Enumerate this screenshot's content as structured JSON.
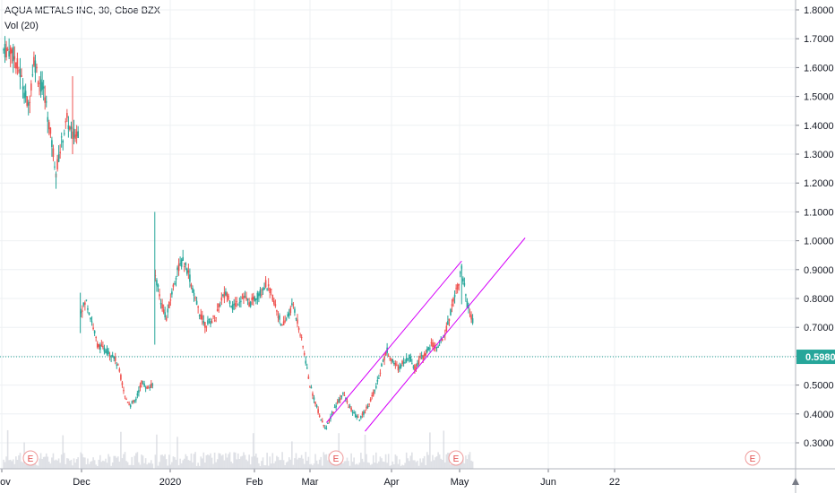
{
  "header": {
    "symbol_line": "AQUA METALS INC, 30, Cboe BZX",
    "indicator": "Vol (20)"
  },
  "chart_data": {
    "type": "candlestick",
    "title": "AQUA METALS INC, 30, Cboe BZX",
    "ylim": [
      0.25,
      1.82
    ],
    "y_ticks": [
      {
        "label": "1.8000",
        "value": 1.8
      },
      {
        "label": "1.7000",
        "value": 1.7
      },
      {
        "label": "1.6000",
        "value": 1.6
      },
      {
        "label": "1.5000",
        "value": 1.5
      },
      {
        "label": "1.4000",
        "value": 1.4
      },
      {
        "label": "1.3000",
        "value": 1.3
      },
      {
        "label": "1.2000",
        "value": 1.2
      },
      {
        "label": "1.1000",
        "value": 1.1
      },
      {
        "label": "1.0000",
        "value": 1.0
      },
      {
        "label": "0.9000",
        "value": 0.9
      },
      {
        "label": "0.8000",
        "value": 0.8
      },
      {
        "label": "0.7000",
        "value": 0.7
      },
      {
        "label": "0.6000",
        "value": 0.6
      },
      {
        "label": "0.5000",
        "value": 0.5
      },
      {
        "label": "0.4000",
        "value": 0.4
      },
      {
        "label": "0.3000",
        "value": 0.3
      }
    ],
    "x_ticks": [
      "Nov",
      "Dec",
      "2020",
      "Feb",
      "Mar",
      "Apr",
      "May",
      "Jun",
      "22"
    ],
    "current_price": {
      "label": "0.5980",
      "value": 0.598,
      "color": "#26a69a"
    },
    "earnings_marker_label": "E",
    "colors": {
      "up": "#26a69a",
      "down": "#ef5350",
      "trendline": "#d500f9",
      "grid": "#eef0f3",
      "volume": "#d1d4dc"
    },
    "price_path": [
      {
        "day": 0,
        "price": 1.66
      },
      {
        "day": 3,
        "price": 1.66
      },
      {
        "day": 6,
        "price": 1.58
      },
      {
        "day": 9,
        "price": 1.46
      },
      {
        "day": 11,
        "price": 1.63
      },
      {
        "day": 13,
        "price": 1.55
      },
      {
        "day": 15,
        "price": 1.5
      },
      {
        "day": 17,
        "price": 1.37
      },
      {
        "day": 19,
        "price": 1.24
      },
      {
        "day": 21,
        "price": 1.34
      },
      {
        "day": 23,
        "price": 1.42
      },
      {
        "day": 25,
        "price": 1.36
      },
      {
        "day": 27,
        "price": 1.38
      },
      {
        "day": 28,
        "price": 0.76
      },
      {
        "day": 30,
        "price": 0.79
      },
      {
        "day": 32,
        "price": 0.72
      },
      {
        "day": 34,
        "price": 0.64
      },
      {
        "day": 37,
        "price": 0.62
      },
      {
        "day": 40,
        "price": 0.6
      },
      {
        "day": 42,
        "price": 0.55
      },
      {
        "day": 44,
        "price": 0.46
      },
      {
        "day": 46,
        "price": 0.43
      },
      {
        "day": 48,
        "price": 0.45
      },
      {
        "day": 50,
        "price": 0.51
      },
      {
        "day": 52,
        "price": 0.49
      },
      {
        "day": 54,
        "price": 0.5
      },
      {
        "day": 55,
        "price": 0.88
      },
      {
        "day": 57,
        "price": 0.79
      },
      {
        "day": 59,
        "price": 0.73
      },
      {
        "day": 61,
        "price": 0.82
      },
      {
        "day": 63,
        "price": 0.9
      },
      {
        "day": 65,
        "price": 0.93
      },
      {
        "day": 67,
        "price": 0.89
      },
      {
        "day": 69,
        "price": 0.81
      },
      {
        "day": 71,
        "price": 0.75
      },
      {
        "day": 73,
        "price": 0.71
      },
      {
        "day": 75,
        "price": 0.72
      },
      {
        "day": 77,
        "price": 0.74
      },
      {
        "day": 79,
        "price": 0.8
      },
      {
        "day": 81,
        "price": 0.82
      },
      {
        "day": 83,
        "price": 0.77
      },
      {
        "day": 85,
        "price": 0.79
      },
      {
        "day": 87,
        "price": 0.81
      },
      {
        "day": 89,
        "price": 0.78
      },
      {
        "day": 91,
        "price": 0.8
      },
      {
        "day": 93,
        "price": 0.82
      },
      {
        "day": 95,
        "price": 0.85
      },
      {
        "day": 97,
        "price": 0.82
      },
      {
        "day": 99,
        "price": 0.76
      },
      {
        "day": 101,
        "price": 0.7
      },
      {
        "day": 103,
        "price": 0.74
      },
      {
        "day": 105,
        "price": 0.78
      },
      {
        "day": 107,
        "price": 0.7
      },
      {
        "day": 109,
        "price": 0.61
      },
      {
        "day": 111,
        "price": 0.5
      },
      {
        "day": 113,
        "price": 0.44
      },
      {
        "day": 115,
        "price": 0.38
      },
      {
        "day": 117,
        "price": 0.35
      },
      {
        "day": 119,
        "price": 0.4
      },
      {
        "day": 121,
        "price": 0.44
      },
      {
        "day": 123,
        "price": 0.47
      },
      {
        "day": 125,
        "price": 0.43
      },
      {
        "day": 127,
        "price": 0.4
      },
      {
        "day": 129,
        "price": 0.38
      },
      {
        "day": 131,
        "price": 0.41
      },
      {
        "day": 133,
        "price": 0.45
      },
      {
        "day": 135,
        "price": 0.49
      },
      {
        "day": 137,
        "price": 0.57
      },
      {
        "day": 139,
        "price": 0.62
      },
      {
        "day": 141,
        "price": 0.58
      },
      {
        "day": 143,
        "price": 0.56
      },
      {
        "day": 145,
        "price": 0.58
      },
      {
        "day": 147,
        "price": 0.6
      },
      {
        "day": 149,
        "price": 0.56
      },
      {
        "day": 151,
        "price": 0.59
      },
      {
        "day": 153,
        "price": 0.61
      },
      {
        "day": 155,
        "price": 0.64
      },
      {
        "day": 157,
        "price": 0.63
      },
      {
        "day": 159,
        "price": 0.66
      },
      {
        "day": 161,
        "price": 0.71
      },
      {
        "day": 163,
        "price": 0.8
      },
      {
        "day": 165,
        "price": 0.86
      },
      {
        "day": 166,
        "price": 0.9
      },
      {
        "day": 167,
        "price": 0.84
      },
      {
        "day": 168,
        "price": 0.78
      },
      {
        "day": 170,
        "price": 0.72
      }
    ],
    "trendlines": [
      {
        "from": {
          "day": 117,
          "price": 0.37
        },
        "to": {
          "day": 166,
          "price": 0.93
        }
      },
      {
        "from": {
          "day": 131,
          "price": 0.34
        },
        "to": {
          "day": 189,
          "price": 1.01
        }
      }
    ],
    "earnings_days": [
      10,
      111,
      152,
      251
    ]
  }
}
